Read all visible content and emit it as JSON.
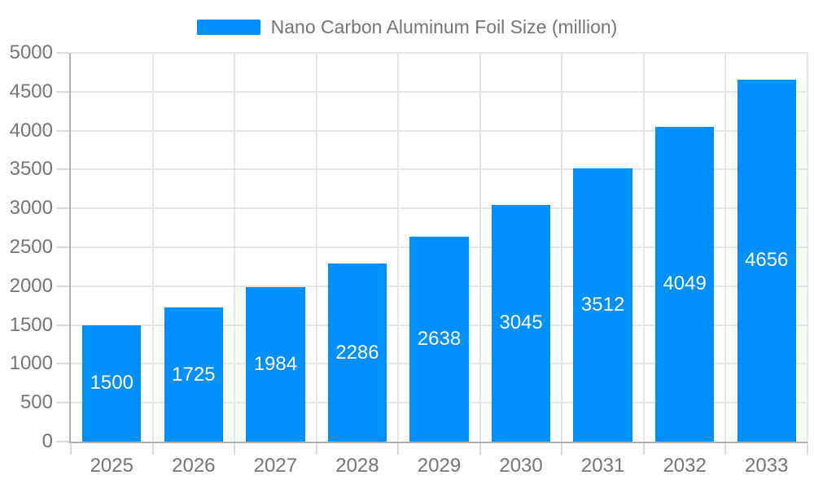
{
  "chart_data": {
    "type": "bar",
    "title": "Nano Carbon Aluminum Foil Size (million)",
    "legend_position": "top",
    "categories": [
      "2025",
      "2026",
      "2027",
      "2028",
      "2029",
      "2030",
      "2031",
      "2032",
      "2033"
    ],
    "values": [
      1500,
      1725,
      1984,
      2286,
      2638,
      3045,
      3512,
      4049,
      4656
    ],
    "series": [
      {
        "name": "Nano Carbon Aluminum Foil Size (million)",
        "values": [
          1500,
          1725,
          1984,
          2286,
          2638,
          3045,
          3512,
          4049,
          4656
        ]
      }
    ],
    "data_labels_visible": true,
    "xlabel": "",
    "ylabel": "",
    "ylim": [
      0,
      5000
    ],
    "ytick_step": 500,
    "ytick_labels": [
      "0",
      "500",
      "1000",
      "1500",
      "2000",
      "2500",
      "3000",
      "3500",
      "4000",
      "4500",
      "5000"
    ],
    "grid": true,
    "colors": {
      "bar": "#008FFB",
      "axis_text": "#757575",
      "legend_text": "#757575",
      "data_label": "#ffffff",
      "grid_line": "#e6e6e6",
      "tick_line": "#d9d9d9",
      "axis_line": "#b1b1b1",
      "background": "#ffffff"
    }
  }
}
